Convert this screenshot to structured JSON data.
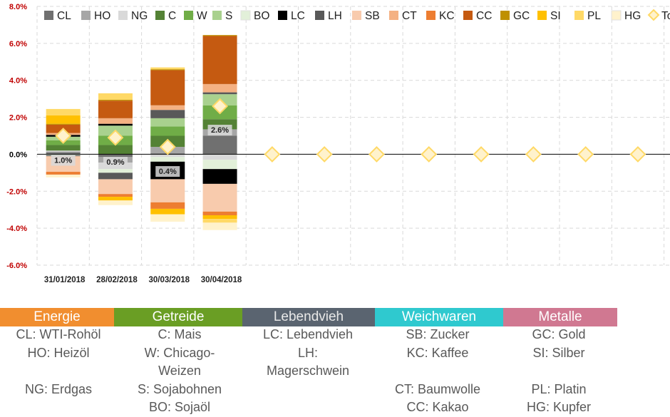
{
  "chart_data": {
    "type": "bar",
    "stacked": true,
    "categories": [
      "31/01/2018",
      "28/02/2018",
      "30/03/2018",
      "30/04/2018",
      "",
      "",
      "",
      "",
      "",
      "",
      "",
      ""
    ],
    "ylim": [
      -6.0,
      8.0
    ],
    "yticks": [
      -6.0,
      -4.0,
      -2.0,
      0.0,
      2.0,
      4.0,
      6.0,
      8.0
    ],
    "ytick_labels": [
      "-6.0%",
      "-4.0%",
      "-2.0%",
      "0.0%",
      "2.0%",
      "4.0%",
      "6.0%",
      "8.0%"
    ],
    "ytick_colors": [
      "#c00000",
      "#c00000",
      "#c00000",
      "#000000",
      "#c00000",
      "#c00000",
      "#c00000",
      "#c00000"
    ],
    "series": [
      {
        "name": "CL",
        "color": "#707070",
        "values": [
          0.1,
          -0.15,
          0.05,
          1.0,
          null,
          null,
          null,
          null,
          null,
          null,
          null,
          null
        ]
      },
      {
        "name": "HO",
        "color": "#a6a6a6",
        "values": [
          0.05,
          -0.3,
          0.35,
          0.35,
          null,
          null,
          null,
          null,
          null,
          null,
          null,
          null
        ]
      },
      {
        "name": "NG",
        "color": "#d9d9d9",
        "values": [
          0.05,
          -0.35,
          -0.15,
          -0.3,
          null,
          null,
          null,
          null,
          null,
          null,
          null,
          null
        ]
      },
      {
        "name": "C",
        "color": "#548235",
        "values": [
          0.3,
          0.5,
          0.6,
          0.55,
          null,
          null,
          null,
          null,
          null,
          null,
          null,
          null
        ]
      },
      {
        "name": "W",
        "color": "#70ad47",
        "values": [
          0.25,
          0.5,
          0.5,
          0.75,
          null,
          null,
          null,
          null,
          null,
          null,
          null,
          null
        ]
      },
      {
        "name": "S",
        "color": "#a9d18e",
        "values": [
          0.2,
          0.55,
          0.45,
          0.6,
          null,
          null,
          null,
          null,
          null,
          null,
          null,
          null
        ]
      },
      {
        "name": "BO",
        "color": "#e2f0d9",
        "values": [
          -0.05,
          -0.2,
          -0.25,
          -0.5,
          null,
          null,
          null,
          null,
          null,
          null,
          null,
          null
        ]
      },
      {
        "name": "LC",
        "color": "#000000",
        "values": [
          0.1,
          0.1,
          -0.95,
          -0.8,
          null,
          null,
          null,
          null,
          null,
          null,
          null,
          null
        ]
      },
      {
        "name": "LH",
        "color": "#595959",
        "values": [
          -0.05,
          -0.35,
          0.45,
          0.1,
          null,
          null,
          null,
          null,
          null,
          null,
          null,
          null
        ]
      },
      {
        "name": "SB",
        "color": "#f8cbad",
        "values": [
          -0.85,
          -0.8,
          -1.25,
          -1.5,
          null,
          null,
          null,
          null,
          null,
          null,
          null,
          null
        ]
      },
      {
        "name": "CT",
        "color": "#f4b183",
        "values": [
          0.1,
          0.3,
          0.25,
          0.45,
          null,
          null,
          null,
          null,
          null,
          null,
          null,
          null
        ]
      },
      {
        "name": "KC",
        "color": "#ed7d31",
        "values": [
          -0.15,
          -0.15,
          -0.35,
          -0.2,
          null,
          null,
          null,
          null,
          null,
          null,
          null,
          null
        ]
      },
      {
        "name": "CC",
        "color": "#c55a11",
        "values": [
          0.45,
          0.95,
          1.9,
          2.6,
          null,
          null,
          null,
          null,
          null,
          null,
          null,
          null
        ]
      },
      {
        "name": "GC",
        "color": "#bf9000",
        "values": [
          0.05,
          0.05,
          0.05,
          0.05,
          null,
          null,
          null,
          null,
          null,
          null,
          null,
          null
        ]
      },
      {
        "name": "SI",
        "color": "#ffc000",
        "values": [
          0.45,
          -0.2,
          -0.3,
          -0.2,
          null,
          null,
          null,
          null,
          null,
          null,
          null,
          null
        ]
      },
      {
        "name": "PL",
        "color": "#ffd966",
        "values": [
          0.35,
          0.35,
          0.1,
          -0.2,
          null,
          null,
          null,
          null,
          null,
          null,
          null,
          null
        ]
      },
      {
        "name": "HG",
        "color": "#fff2cc",
        "values": [
          -0.15,
          -0.25,
          -0.4,
          -0.4,
          null,
          null,
          null,
          null,
          null,
          null,
          null,
          null
        ]
      }
    ],
    "total": {
      "name": "Total",
      "values": [
        1.0,
        0.9,
        0.4,
        2.6,
        0.0,
        0.0,
        0.0,
        0.0,
        0.0,
        0.0,
        0.0,
        0.0
      ],
      "labels": [
        "1.0%",
        "0.9%",
        "0.4%",
        "2.6%"
      ],
      "marker": "diamond",
      "color": "#ffd966"
    },
    "legend_position": "top",
    "grid": true
  },
  "legend_table": [
    {
      "header": "Energie",
      "color": "#f18e2f",
      "items": [
        "CL: WTI-Rohöl",
        "HO: Heizöl",
        "",
        "NG: Erdgas"
      ]
    },
    {
      "header": "Getreide",
      "color": "#6a9e24",
      "items": [
        "C: Mais",
        "W: Chicago-",
        "Weizen",
        "S: Sojabohnen",
        "BO: Sojaöl"
      ]
    },
    {
      "header": "Lebendvieh",
      "color": "#5a6470",
      "items": [
        "LC: Lebendvieh",
        "LH:",
        "Magerschwein"
      ]
    },
    {
      "header": "Weichwaren",
      "color": "#2fc9cf",
      "items": [
        "SB: Zucker",
        "KC: Kaffee",
        "",
        "CT: Baumwolle",
        "CC: Kakao"
      ]
    },
    {
      "header": "Metalle",
      "color": "#d07891",
      "items": [
        "GC: Gold",
        "SI: Silber",
        "",
        "PL: Platin",
        "HG: Kupfer"
      ]
    }
  ]
}
